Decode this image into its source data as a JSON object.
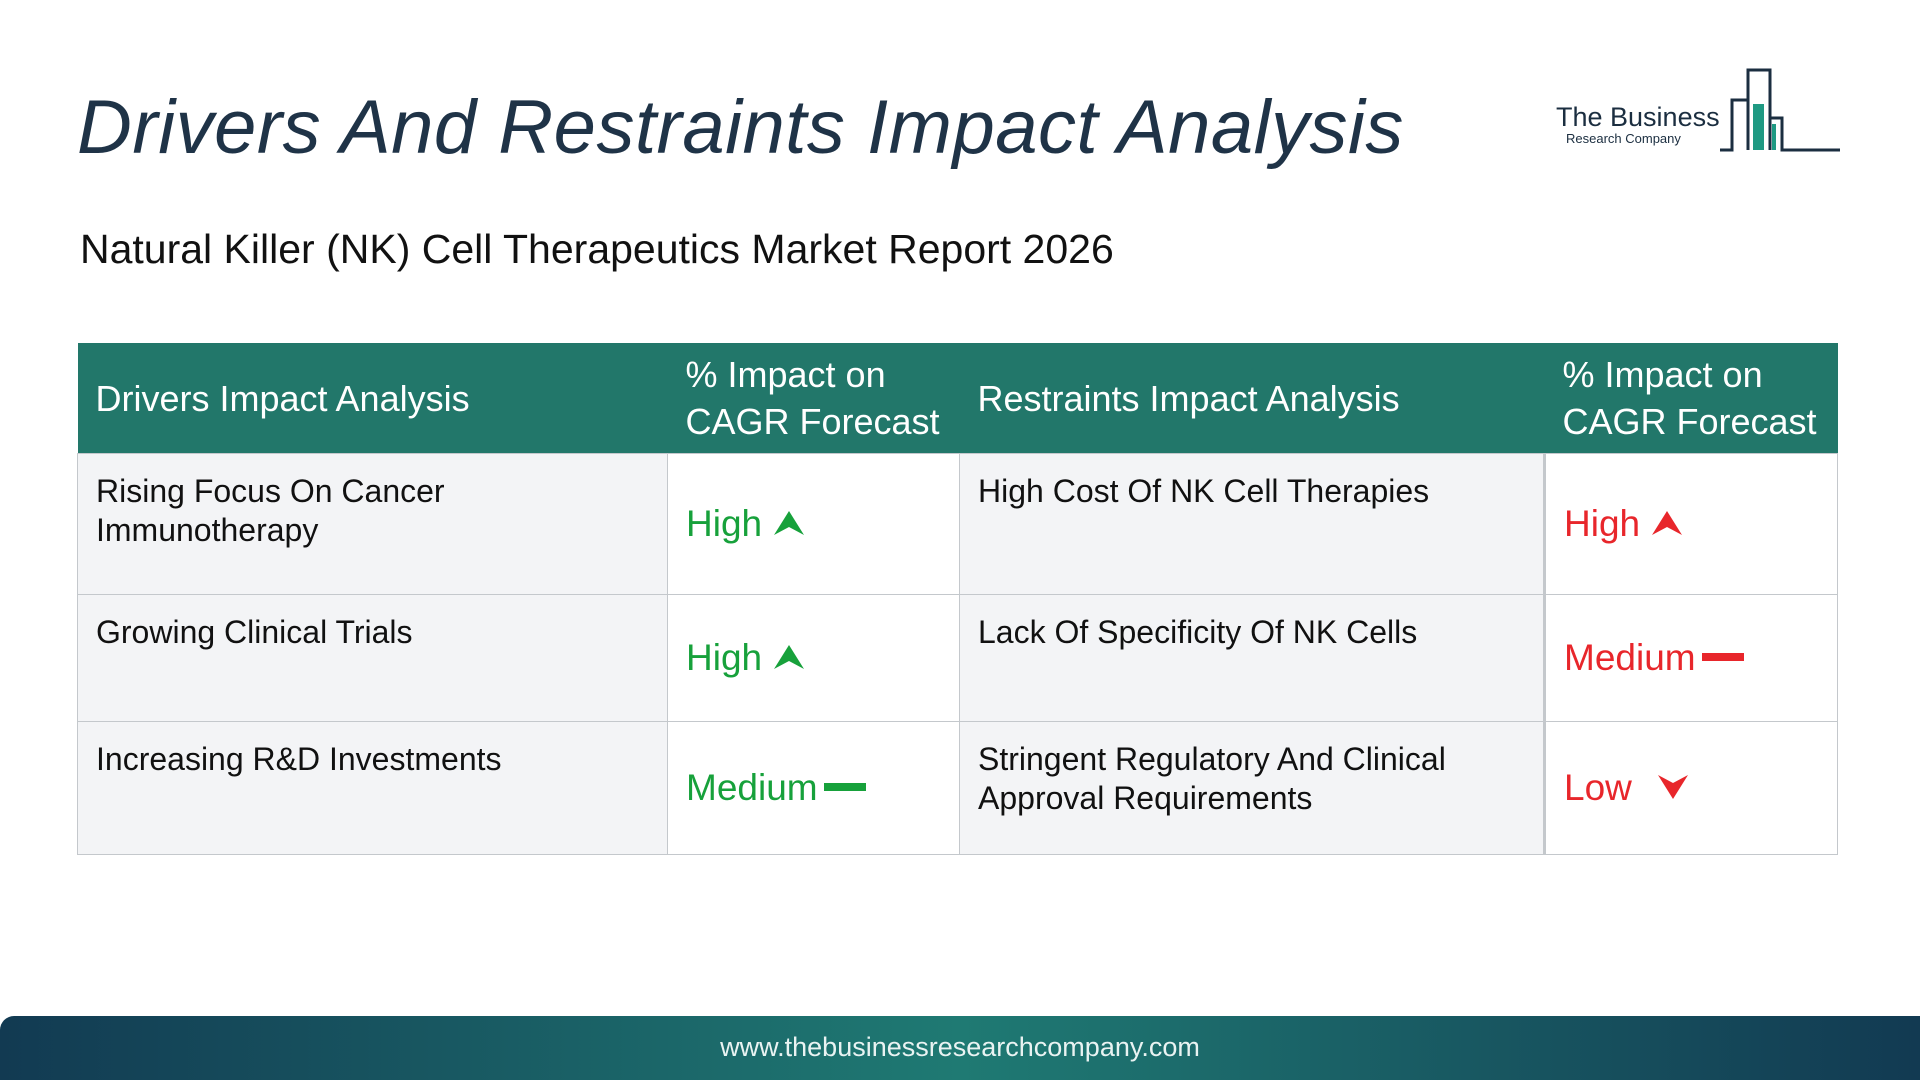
{
  "header": {
    "title": "Drivers And Restraints Impact Analysis",
    "subtitle": "Natural Killer (NK) Cell Therapeutics Market Report 2026"
  },
  "logo": {
    "name": "The Business",
    "sub": "Research Company",
    "icon": "bar-chart-building-icon",
    "color": "#1f7a6b"
  },
  "table": {
    "headers": {
      "drivers": "Drivers Impact Analysis",
      "drivers_impact_line1": "% Impact on",
      "drivers_impact_line2": "CAGR Forecast",
      "restraints": "Restraints Impact Analysis",
      "restraints_impact_line1": "% Impact on",
      "restraints_impact_line2": "CAGR Forecast"
    },
    "header_color": "#22776a",
    "rows": [
      {
        "driver": "Rising Focus On Cancer Immunotherapy",
        "driver_impact": "High",
        "driver_icon": "arrow-up-icon",
        "restraint": "High Cost Of NK Cell Therapies",
        "restraint_impact": "High",
        "restraint_icon": "arrow-up-icon"
      },
      {
        "driver": "Growing Clinical Trials",
        "driver_impact": "High",
        "driver_icon": "arrow-up-icon",
        "restraint": "Lack Of Specificity Of NK Cells",
        "restraint_impact": "Medium",
        "restraint_icon": "dash-icon"
      },
      {
        "driver": "Increasing R&D Investments",
        "driver_impact": "Medium",
        "driver_icon": "dash-icon",
        "restraint": "Stringent Regulatory And Clinical Approval Requirements",
        "restraint_impact": "Low",
        "restraint_icon": "arrow-down-icon"
      }
    ],
    "driver_color": "#17a13b",
    "restraint_color": "#e8262b"
  },
  "footer": {
    "url": "www.thebusinessresearchcompany.com"
  }
}
